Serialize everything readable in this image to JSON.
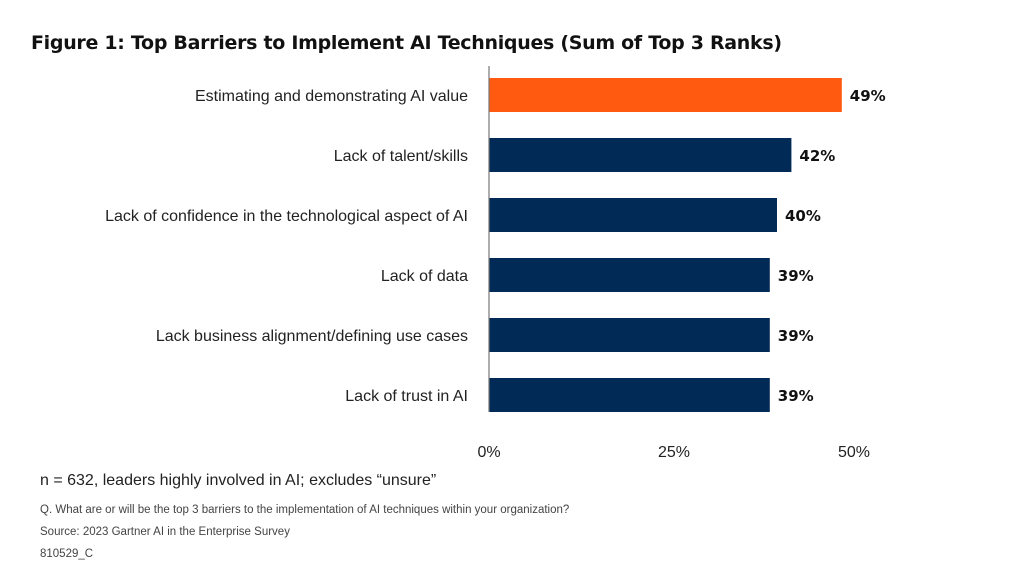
{
  "chart_data": {
    "type": "bar",
    "orientation": "horizontal",
    "title": "Figure 1: Top Barriers to Implement AI Techniques (Sum of Top 3 Ranks)",
    "categories": [
      "Estimating and demonstrating AI value",
      "Lack of talent/skills",
      "Lack of confidence in the technological aspect of AI",
      "Lack of data",
      "Lack business alignment/defining use cases",
      "Lack of trust in AI"
    ],
    "values": [
      49,
      42,
      40,
      39,
      39,
      39
    ],
    "data_labels": [
      "49%",
      "42%",
      "40%",
      "39%",
      "39%",
      "39%"
    ],
    "xlim": [
      0,
      50
    ],
    "x_ticks": [
      0,
      25,
      50
    ],
    "x_tick_labels": [
      "0%",
      "25%",
      "50%"
    ],
    "grid": false,
    "colors": {
      "highlight": "#FF5A10",
      "default": "#022A57"
    },
    "highlight_index": 0
  },
  "footer": {
    "note": "n = 632, leaders highly involved in AI; excludes “unsure”",
    "question": "Q. What are or will be the top 3 barriers to the implementation of AI techniques within your organization?",
    "source": "Source: 2023 Gartner AI in the Enterprise Survey",
    "code": "810529_C"
  }
}
